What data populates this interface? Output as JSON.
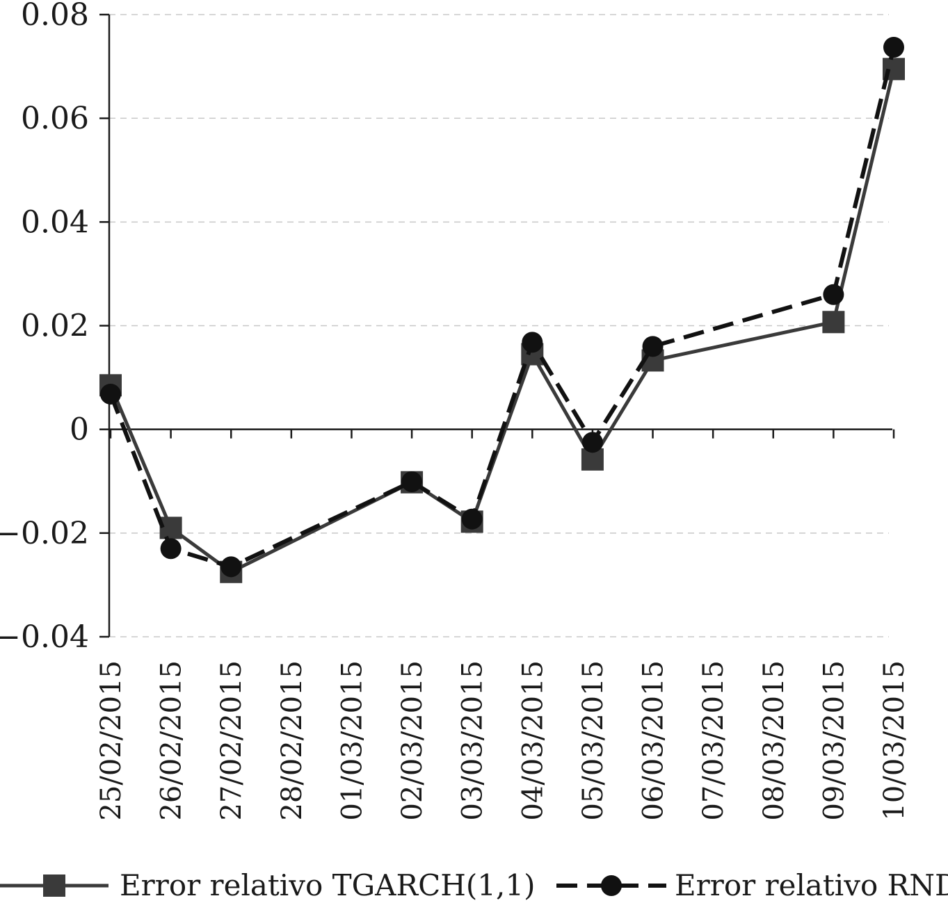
{
  "chart_data": {
    "type": "line",
    "title": "",
    "xlabel": "",
    "ylabel": "",
    "x": [
      "25/02/2015",
      "26/02/2015",
      "27/02/2015",
      "28/02/2015",
      "01/03/2015",
      "02/03/2015",
      "03/03/2015",
      "04/03/2015",
      "05/03/2015",
      "06/03/2015",
      "07/03/2015",
      "08/03/2015",
      "09/03/2015",
      "10/03/2015"
    ],
    "ylim": [
      -0.04,
      0.08
    ],
    "yticks": [
      0.08,
      0.06,
      0.04,
      0.02,
      0,
      -0.02,
      -0.04
    ],
    "ytick_labels": [
      "0.08",
      "0.06",
      "0.04",
      "0.02",
      "0",
      "−0.02",
      "−0.04"
    ],
    "grid": true,
    "legend_position": "bottom",
    "series": [
      {
        "name": "Error relativo TGARCH(1,1)",
        "marker": "square",
        "line_style": "solid",
        "color": "#3a3a3a",
        "points": [
          {
            "x": "25/02/2015",
            "y": 0.0085
          },
          {
            "x": "26/02/2015",
            "y": -0.019
          },
          {
            "x": "27/02/2015",
            "y": -0.0275
          },
          {
            "x": "02/03/2015",
            "y": -0.0102
          },
          {
            "x": "03/03/2015",
            "y": -0.0178
          },
          {
            "x": "04/03/2015",
            "y": 0.0145
          },
          {
            "x": "05/03/2015",
            "y": -0.0058
          },
          {
            "x": "06/03/2015",
            "y": 0.0133
          },
          {
            "x": "09/03/2015",
            "y": 0.0207
          },
          {
            "x": "10/03/2015",
            "y": 0.0695
          }
        ]
      },
      {
        "name": "Error relativo RND",
        "marker": "circle",
        "line_style": "dashed",
        "color": "#111111",
        "points": [
          {
            "x": "25/02/2015",
            "y": 0.0068
          },
          {
            "x": "26/02/2015",
            "y": -0.023
          },
          {
            "x": "27/02/2015",
            "y": -0.0265
          },
          {
            "x": "02/03/2015",
            "y": -0.0101
          },
          {
            "x": "03/03/2015",
            "y": -0.0173
          },
          {
            "x": "04/03/2015",
            "y": 0.0168
          },
          {
            "x": "05/03/2015",
            "y": -0.0025
          },
          {
            "x": "06/03/2015",
            "y": 0.016
          },
          {
            "x": "09/03/2015",
            "y": 0.026
          },
          {
            "x": "10/03/2015",
            "y": 0.0737
          }
        ]
      }
    ]
  }
}
